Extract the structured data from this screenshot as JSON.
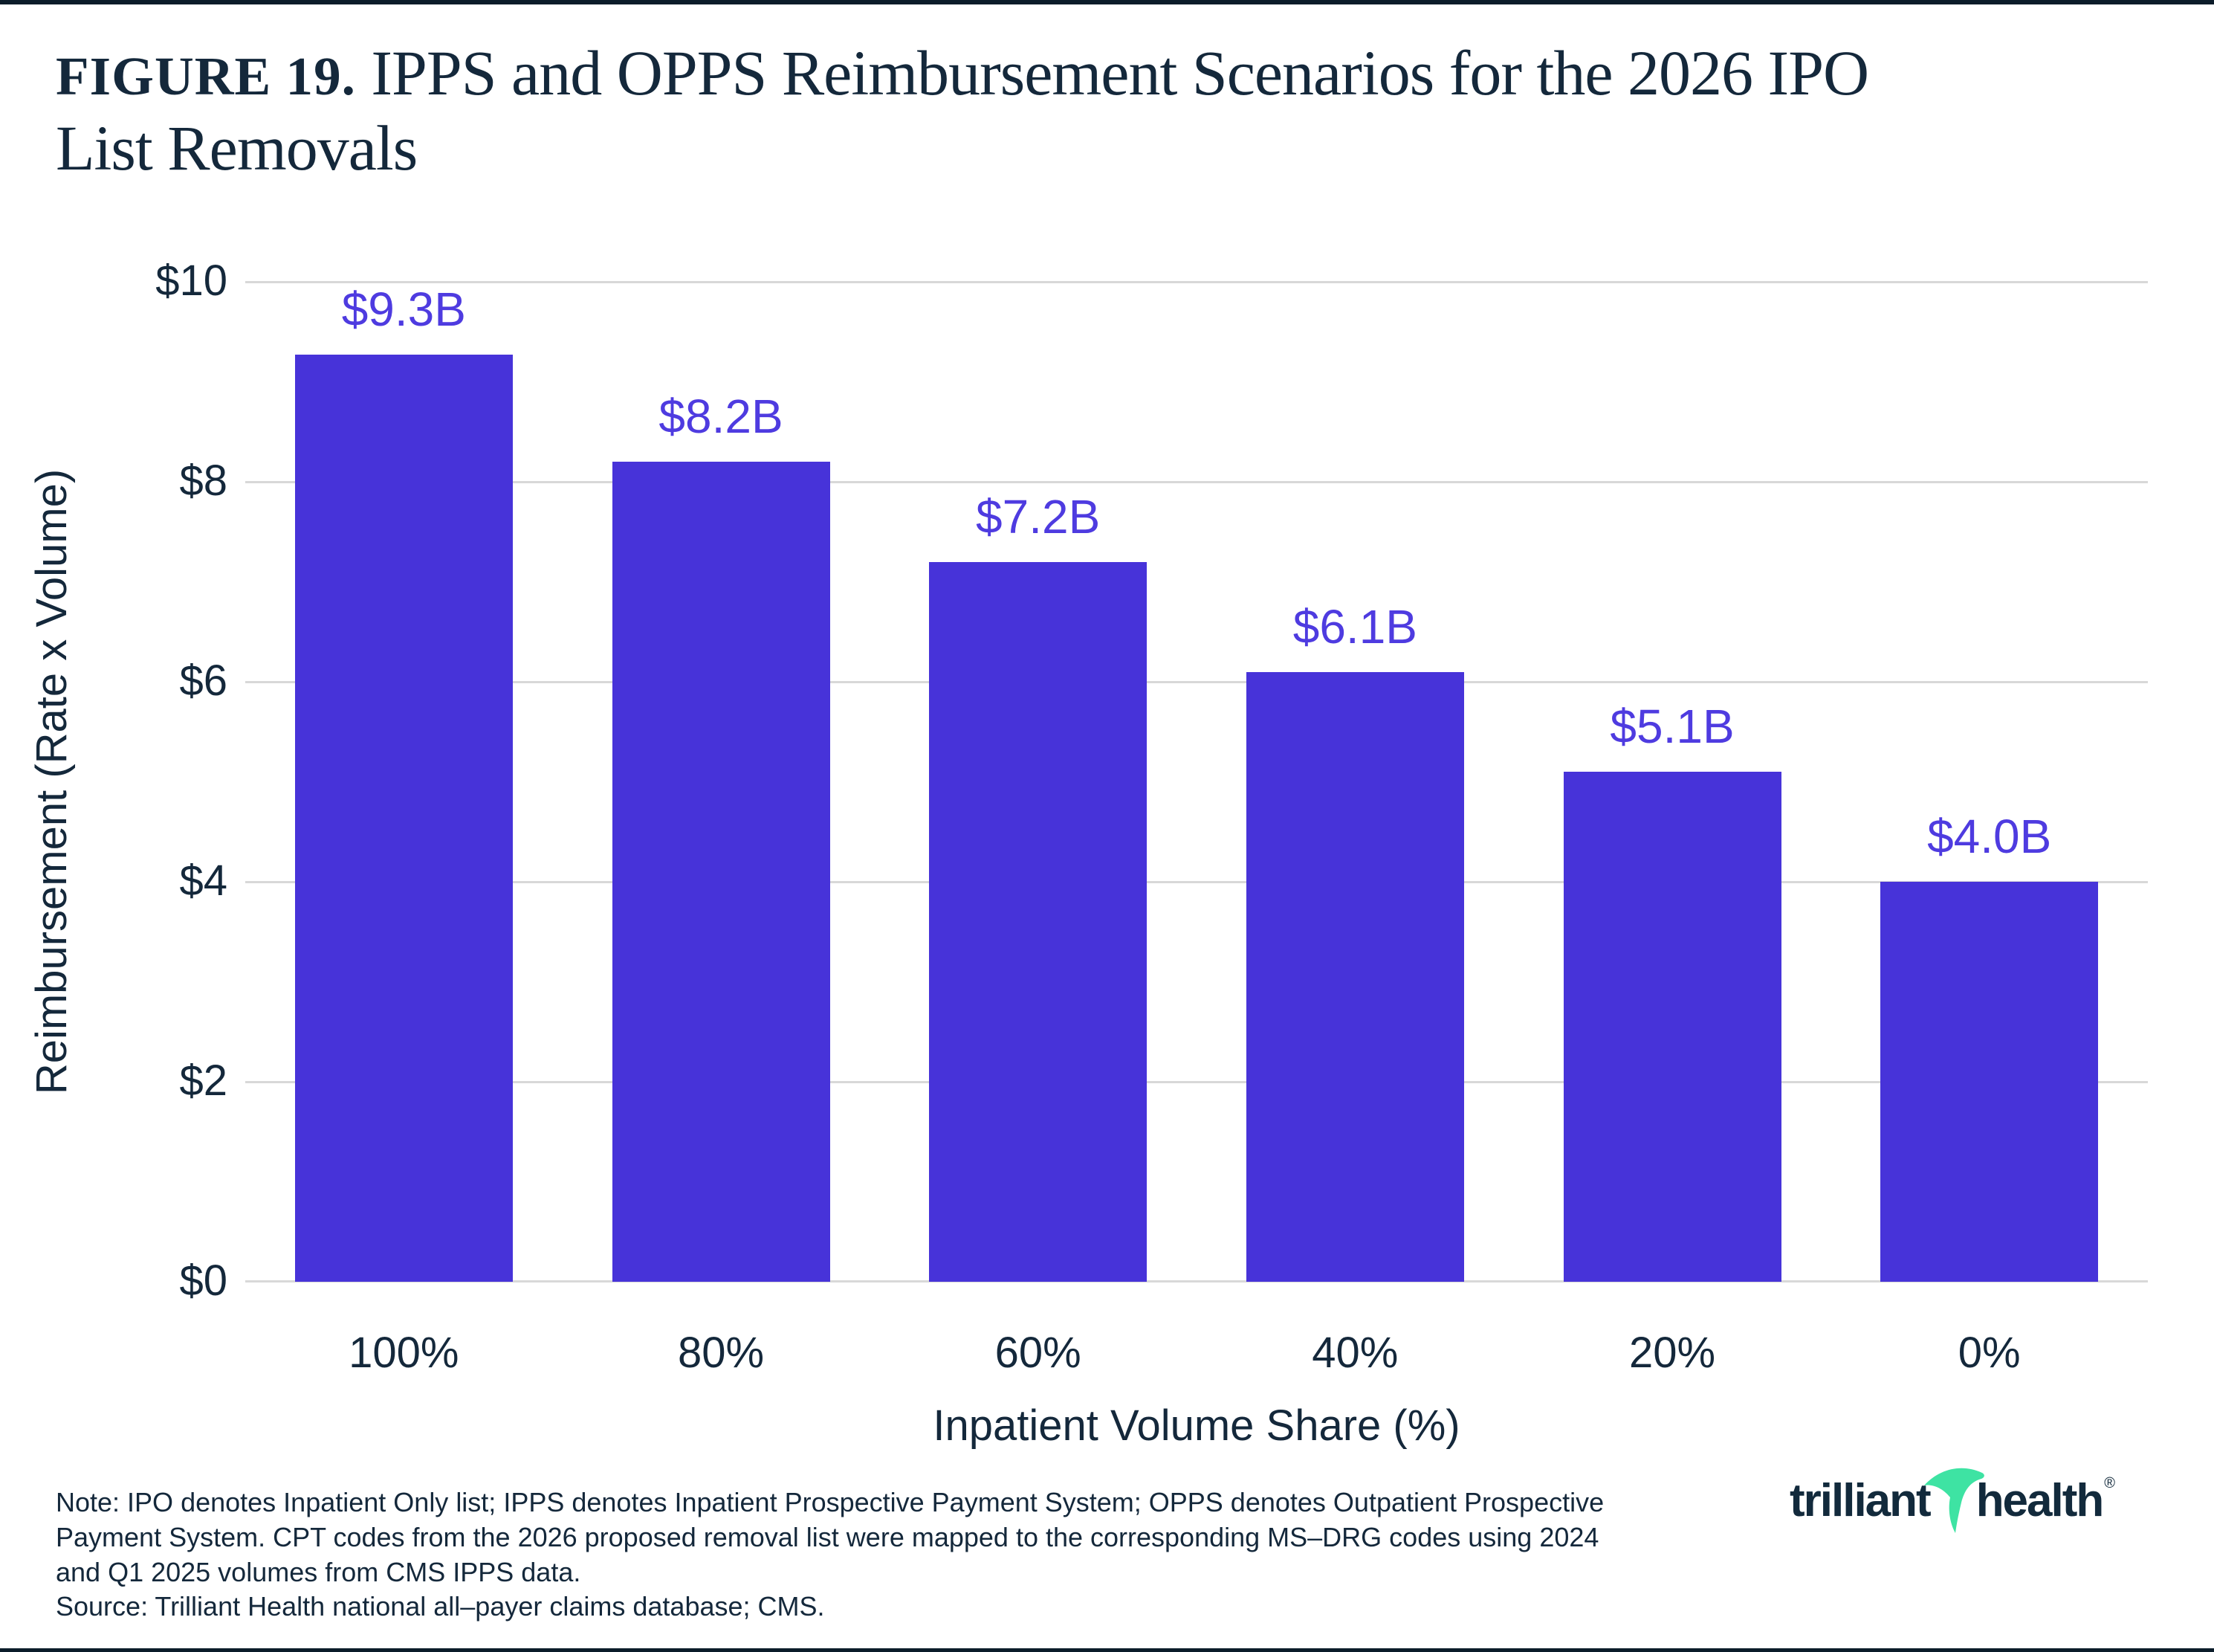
{
  "title": {
    "prefix": "FIGURE 19.",
    "line1": "IPPS and OPPS Reimbursement Scenarios for the 2026 IPO",
    "line2": "List Removals"
  },
  "chart_data": {
    "type": "bar",
    "categories": [
      "100%",
      "80%",
      "60%",
      "40%",
      "20%",
      "0%"
    ],
    "values": [
      9.3,
      8.2,
      7.2,
      6.1,
      5.1,
      4.0
    ],
    "bar_labels": [
      "$9.3B",
      "$8.2B",
      "$7.2B",
      "$6.1B",
      "$5.1B",
      "$4.0B"
    ],
    "title": "IPPS and OPPS Reimbursement Scenarios for the 2026 IPO List Removals",
    "xlabel": "Inpatient Volume Share (%)",
    "ylabel": "Reimbursement (Rate x Volume)",
    "y_ticks": [
      "$10",
      "$8",
      "$6",
      "$4",
      "$2",
      "$0"
    ],
    "ylim": [
      0,
      10
    ],
    "grid": "horizontal",
    "legend": "none",
    "bar_color": "#4733D9",
    "label_color": "#4E3BE0",
    "gridline_color": "#D8D8D8",
    "axis_text_color": "#14283B"
  },
  "footer": {
    "note_lines": [
      "Note: IPO denotes Inpatient Only list; IPPS denotes Inpatient Prospective Payment System; OPPS denotes Outpatient Prospective",
      "Payment System. CPT codes from the 2026 proposed removal list were mapped to the corresponding MS–DRG codes using 2024",
      "and Q1 2025 volumes from CMS IPPS data."
    ],
    "source": "Source: Trilliant Health national all–payer claims database; CMS.",
    "logo": {
      "part1": "trilliant",
      "part2": "health",
      "registered": "®",
      "swoosh_color": "#3EE3A3",
      "text_color": "#122A3C"
    }
  }
}
